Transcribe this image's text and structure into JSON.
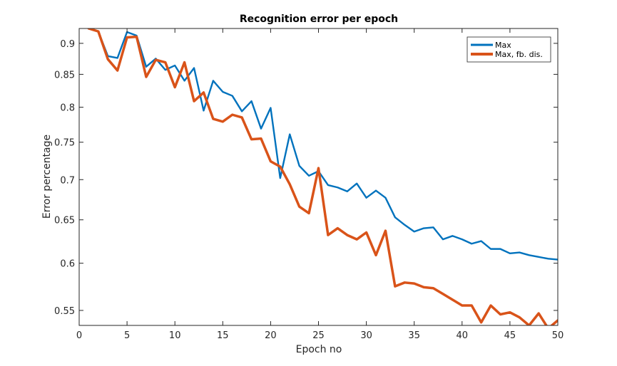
{
  "colors": {
    "max": "#0072BD",
    "max_fb_dis": "#D95319",
    "axes": "#262626",
    "background": "#ffffff"
  },
  "chart_data": {
    "type": "line",
    "title": "Recognition error per epoch",
    "xlabel": "Epoch no",
    "ylabel": "Error percentage",
    "xlim": [
      0,
      50
    ],
    "ylim": [
      0.535,
      0.925
    ],
    "yscale": "log",
    "grid": false,
    "legend_position": "top-right",
    "xticks": [
      0,
      5,
      10,
      15,
      20,
      25,
      30,
      35,
      40,
      45,
      50
    ],
    "xtick_labels": [
      "0",
      "5",
      "10",
      "15",
      "20",
      "25",
      "30",
      "35",
      "40",
      "45",
      "50"
    ],
    "yticks": [
      0.55,
      0.6,
      0.65,
      0.7,
      0.75,
      0.8,
      0.85,
      0.9
    ],
    "ytick_labels": [
      "0.55",
      "0.6",
      "0.65",
      "0.7",
      "0.75",
      "0.8",
      "0.85",
      "0.9"
    ],
    "x": [
      1,
      2,
      3,
      4,
      5,
      6,
      7,
      8,
      9,
      10,
      11,
      12,
      13,
      14,
      15,
      16,
      17,
      18,
      19,
      20,
      21,
      22,
      23,
      24,
      25,
      26,
      27,
      28,
      29,
      30,
      31,
      32,
      33,
      34,
      35,
      36,
      37,
      38,
      39,
      40,
      41,
      42,
      43,
      44,
      45,
      46,
      47,
      48,
      49,
      50
    ],
    "series": [
      {
        "name": "Max",
        "color": "#0072BD",
        "values": [
          0.926,
          0.92,
          0.879,
          0.876,
          0.919,
          0.913,
          0.862,
          0.875,
          0.857,
          0.864,
          0.84,
          0.86,
          0.795,
          0.84,
          0.823,
          0.817,
          0.794,
          0.809,
          0.769,
          0.799,
          0.702,
          0.761,
          0.718,
          0.705,
          0.711,
          0.693,
          0.69,
          0.685,
          0.695,
          0.677,
          0.686,
          0.677,
          0.653,
          0.644,
          0.636,
          0.64,
          0.641,
          0.627,
          0.631,
          0.627,
          0.622,
          0.625,
          0.616,
          0.616,
          0.611,
          0.612,
          0.609,
          0.607,
          0.605,
          0.604
        ]
      },
      {
        "name": "Max, fb. dis.",
        "color": "#D95319",
        "values": [
          0.925,
          0.92,
          0.874,
          0.856,
          0.91,
          0.911,
          0.846,
          0.873,
          0.869,
          0.83,
          0.869,
          0.809,
          0.822,
          0.783,
          0.779,
          0.789,
          0.785,
          0.754,
          0.755,
          0.724,
          0.717,
          0.694,
          0.666,
          0.658,
          0.715,
          0.632,
          0.64,
          0.632,
          0.627,
          0.635,
          0.609,
          0.637,
          0.575,
          0.579,
          0.578,
          0.574,
          0.573,
          0.567,
          0.561,
          0.555,
          0.555,
          0.538,
          0.555,
          0.546,
          0.548,
          0.543,
          0.535,
          0.547,
          0.532,
          0.54
        ]
      }
    ]
  }
}
